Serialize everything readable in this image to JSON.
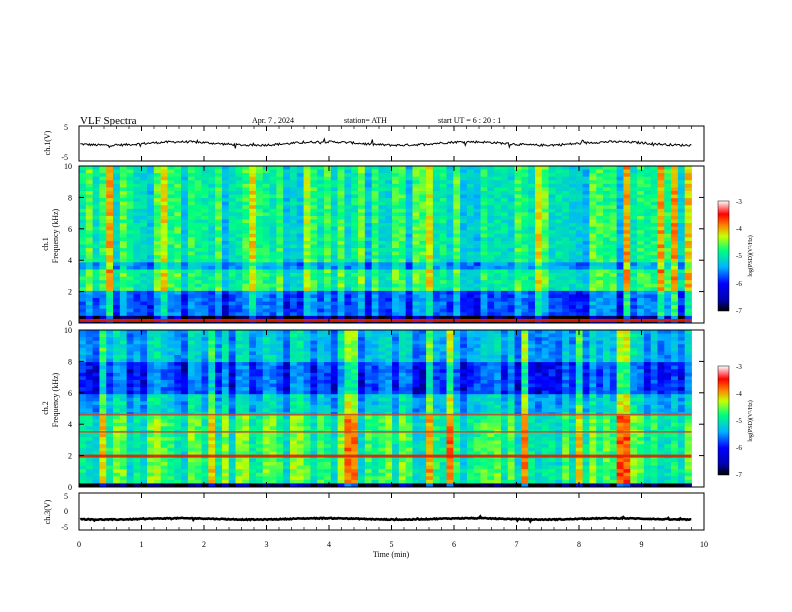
{
  "header": {
    "title": "VLF Spectra",
    "date": "Apr. 7 , 2024",
    "station": "station= ATH",
    "start_time": "start UT = 6 : 20 : 1"
  },
  "chart_data": [
    {
      "type": "line",
      "panel": "ch1-waveform",
      "ylabel": "ch.1(V)",
      "ylim": [
        -5,
        5
      ],
      "yticks": [
        "5",
        "-5"
      ],
      "xlim": [
        0,
        10
      ],
      "x_extent": [
        0,
        9.8
      ],
      "series": [
        {
          "baseline": 0,
          "amplitude": 0.8
        }
      ]
    },
    {
      "type": "heatmap",
      "panel": "ch1-spectrogram",
      "ylabel": [
        "ch.1",
        "Frequency (kHz)"
      ],
      "ylim": [
        0,
        10
      ],
      "yticks": [
        "0",
        "2",
        "4",
        "6",
        "8",
        "10"
      ],
      "xlim": [
        0,
        10
      ],
      "colorbar": {
        "label": "log(PSD)(V²/Hz)",
        "range": [
          -7,
          -3
        ],
        "ticks": [
          "-3",
          "-4",
          "-5",
          "-6",
          "-7"
        ]
      },
      "features": [
        {
          "kind": "low-power band",
          "f_low": 0.5,
          "f_high": 2.0
        },
        {
          "kind": "low-power band",
          "f_low": 3.3,
          "f_high": 3.8
        },
        {
          "kind": "strong line",
          "f": 0.2
        }
      ]
    },
    {
      "type": "heatmap",
      "panel": "ch2-spectrogram",
      "ylabel": [
        "ch.2",
        "Frequency (kHz)"
      ],
      "ylim": [
        0,
        10
      ],
      "yticks": [
        "0",
        "2",
        "4",
        "6",
        "8",
        "10"
      ],
      "xlim": [
        0,
        10
      ],
      "colorbar": {
        "label": "log(PSD)(V²/Hz)",
        "range": [
          -7,
          -3
        ],
        "ticks": [
          "-3",
          "-4",
          "-5",
          "-6",
          "-7"
        ]
      },
      "features": [
        {
          "kind": "low-power band",
          "f_low": 6.0,
          "f_high": 8.0
        },
        {
          "kind": "strong line",
          "f": 2.0
        },
        {
          "kind": "line",
          "f": 4.6
        },
        {
          "kind": "line",
          "f": 3.5
        }
      ]
    },
    {
      "type": "line",
      "panel": "ch3-waveform",
      "ylabel": "ch.3(V)",
      "ylim": [
        -5,
        5
      ],
      "yticks": [
        "5",
        "0",
        "-5"
      ],
      "xlim": [
        0,
        10
      ],
      "x_extent": [
        0,
        9.8
      ],
      "series": [
        {
          "baseline": -2,
          "amplitude": 0.3
        }
      ]
    }
  ],
  "x_axis": {
    "label": "Time (min)",
    "ticks": [
      "0",
      "1",
      "2",
      "3",
      "4",
      "5",
      "6",
      "7",
      "8",
      "9",
      "10"
    ]
  },
  "colors": {
    "colormap": [
      "#000000",
      "#0000ff",
      "#00b4ff",
      "#00ff80",
      "#c8ff00",
      "#ff8000",
      "#ff0000",
      "#ffffff"
    ]
  }
}
